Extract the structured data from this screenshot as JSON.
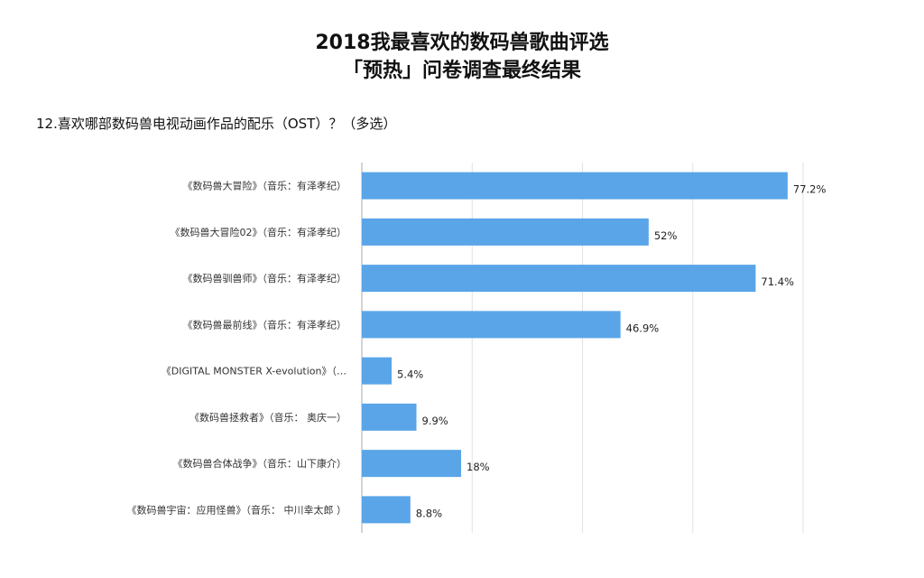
{
  "header": {
    "title_line_1": "2018我最喜欢的数码兽歌曲评选",
    "title_line_2": "「预热」问卷调查最终结果",
    "question": "12.喜欢哪部数码兽电视动画作品的配乐（OST）？（多选）"
  },
  "chart_data": {
    "type": "bar",
    "orientation": "horizontal",
    "title": "2018我最喜欢的数码兽歌曲评选「预热」问卷调查最终结果",
    "subtitle": "12.喜欢哪部数码兽电视动画作品的配乐（OST）？（多选）",
    "xlabel": "",
    "ylabel": "",
    "xlim": [
      0,
      100
    ],
    "grid": true,
    "legend": "none",
    "bar_color": "#5aa5e8",
    "categories": [
      "《数码兽大冒险》（音乐：有泽孝纪）",
      "《数码兽大冒险02》（音乐：有泽孝纪）",
      "《数码兽驯兽师》（音乐：有泽孝纪）",
      "《数码兽最前线》（音乐：有泽孝纪）",
      "《DIGITAL MONSTER X-evolution》（…",
      "《数码兽拯救者》（音乐： 奥庆一）",
      "《数码兽合体战争》（音乐：山下康介）",
      "《数码兽宇宙：应用怪兽》（音乐： 中川幸太郎 ）"
    ],
    "values": [
      77.2,
      52,
      71.4,
      46.9,
      5.4,
      9.9,
      18,
      8.8
    ],
    "value_labels": [
      "77.2%",
      "52%",
      "71.4%",
      "46.9%",
      "5.4%",
      "9.9%",
      "18%",
      "8.8%"
    ]
  }
}
